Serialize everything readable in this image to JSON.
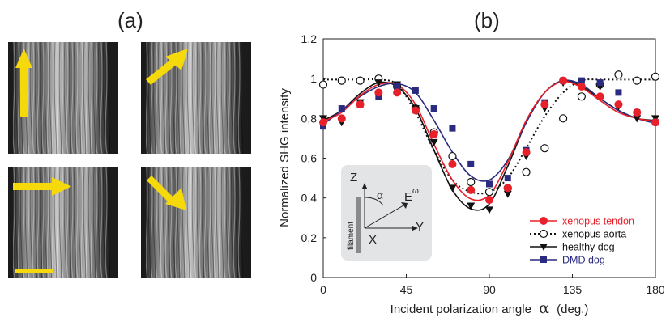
{
  "panels": {
    "a_label": "(a)",
    "b_label": "(b)",
    "arrow_color": "#f5d90a",
    "images": [
      {
        "arrow_direction": "up"
      },
      {
        "arrow_direction": "up-right"
      },
      {
        "arrow_direction": "right"
      },
      {
        "arrow_direction": "down-right"
      }
    ]
  },
  "inset": {
    "z_label": "Z",
    "alpha_label": "α",
    "e_label": "E",
    "e_superscript": "ω",
    "y_label": "Y",
    "x_label": "X",
    "filament_label": "filament"
  },
  "chart_data": {
    "type": "scatter",
    "xlabel_text": "Incident polarization angle",
    "xlabel_symbol": "α",
    "xlabel_unit": "(deg.)",
    "ylabel": "Normalized SHG intensity",
    "xlim": [
      0,
      180
    ],
    "ylim": [
      0,
      1.2
    ],
    "x_ticks": [
      "0",
      "45",
      "90",
      "135",
      "180"
    ],
    "y_ticks": [
      "0",
      "0,2",
      "0,4",
      "0,6",
      "0,8",
      "1",
      "1,2"
    ],
    "legend_position": "bottom-right",
    "series": [
      {
        "name": "xenopus tendon",
        "color": "#e8202a",
        "marker": "circle-filled",
        "line": "solid",
        "x": [
          0,
          10,
          20,
          30,
          40,
          50,
          60,
          70,
          80,
          90,
          100,
          110,
          120,
          130,
          140,
          150,
          160,
          170,
          180
        ],
        "y": [
          0.78,
          0.8,
          0.87,
          0.93,
          0.93,
          0.84,
          0.72,
          0.57,
          0.44,
          0.39,
          0.45,
          0.63,
          0.87,
          0.99,
          0.96,
          0.91,
          0.87,
          0.83,
          0.78
        ],
        "fit": [
          0.785,
          0.83,
          0.915,
          0.97,
          0.97,
          0.87,
          0.67,
          0.49,
          0.395,
          0.415,
          0.58,
          0.79,
          0.93,
          0.985,
          0.955,
          0.89,
          0.83,
          0.8,
          0.785
        ]
      },
      {
        "name": "xenopus aorta",
        "color": "#111111",
        "marker": "circle-open",
        "line": "dotted",
        "x": [
          0,
          10,
          20,
          30,
          40,
          50,
          60,
          70,
          80,
          90,
          100,
          110,
          120,
          130,
          140,
          150,
          160,
          170,
          180
        ],
        "y": [
          0.97,
          0.99,
          0.99,
          1.0,
          0.96,
          0.85,
          0.73,
          0.61,
          0.48,
          0.43,
          0.45,
          0.53,
          0.65,
          0.8,
          0.91,
          0.97,
          1.02,
          0.99,
          1.01
        ],
        "fit": [
          0.995,
          0.995,
          0.995,
          0.995,
          0.97,
          0.83,
          0.64,
          0.49,
          0.43,
          0.43,
          0.5,
          0.65,
          0.81,
          0.93,
          0.99,
          0.995,
          0.995,
          0.995,
          0.995
        ]
      },
      {
        "name": "healthy dog",
        "color": "#111111",
        "marker": "triangle-down",
        "line": "solid",
        "x": [
          0,
          10,
          20,
          30,
          40,
          50,
          60,
          70,
          80,
          90,
          100,
          110,
          120,
          130,
          140,
          150,
          160,
          170,
          180
        ],
        "y": [
          0.8,
          0.78,
          0.88,
          0.98,
          0.97,
          0.85,
          0.68,
          0.45,
          0.36,
          0.34,
          0.42,
          0.61,
          0.85,
          0.98,
          0.98,
          0.96,
          0.86,
          0.8,
          0.8
        ],
        "fit": [
          0.79,
          0.84,
          0.925,
          0.98,
          0.96,
          0.85,
          0.64,
          0.44,
          0.345,
          0.37,
          0.56,
          0.78,
          0.93,
          0.99,
          0.96,
          0.9,
          0.84,
          0.8,
          0.79
        ]
      },
      {
        "name": "DMD dog",
        "color": "#2a2a80",
        "marker": "square",
        "line": "solid",
        "x": [
          0,
          10,
          20,
          30,
          40,
          50,
          60,
          70,
          80,
          90,
          100,
          110,
          120,
          130,
          140,
          150,
          160,
          170,
          180
        ],
        "y": [
          0.76,
          0.85,
          0.87,
          0.91,
          0.96,
          0.94,
          0.85,
          0.75,
          0.57,
          0.47,
          0.5,
          0.64,
          0.88,
          0.99,
          0.99,
          0.98,
          0.93,
          0.83,
          0.78
        ],
        "fit": [
          0.77,
          0.84,
          0.91,
          0.96,
          0.975,
          0.93,
          0.79,
          0.63,
          0.51,
          0.49,
          0.59,
          0.78,
          0.93,
          0.99,
          0.97,
          0.9,
          0.84,
          0.8,
          0.775
        ]
      }
    ]
  }
}
